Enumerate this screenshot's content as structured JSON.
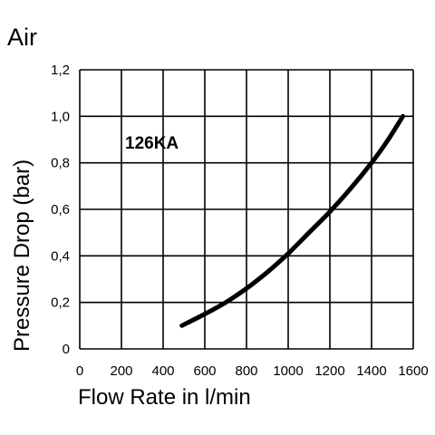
{
  "page": {
    "title": "Air"
  },
  "chart_data": {
    "type": "line",
    "title": "Air",
    "xlabel": "Flow Rate in l/min",
    "ylabel": "Pressure Drop (bar)",
    "xlim": [
      0,
      1600
    ],
    "ylim": [
      0,
      1.2
    ],
    "x_ticks": [
      0,
      200,
      400,
      600,
      800,
      1000,
      1200,
      1400,
      1600
    ],
    "x_tick_labels": [
      "0",
      "200",
      "400",
      "600",
      "800",
      "1000",
      "1200",
      "1400",
      "1600"
    ],
    "y_ticks": [
      0,
      0.2,
      0.4,
      0.6,
      0.8,
      1.0,
      1.2
    ],
    "y_tick_labels": [
      "0",
      "0,2",
      "0,4",
      "0,6",
      "0,8",
      "1,0",
      "1,2"
    ],
    "grid": true,
    "annotation": "126KA",
    "series": [
      {
        "color": "#000000",
        "x": [
          490,
          600,
          700,
          800,
          900,
          1000,
          1100,
          1200,
          1300,
          1400,
          1480,
          1550
        ],
        "y": [
          0.1,
          0.15,
          0.2,
          0.26,
          0.33,
          0.41,
          0.5,
          0.59,
          0.69,
          0.8,
          0.9,
          1.0
        ]
      }
    ]
  }
}
